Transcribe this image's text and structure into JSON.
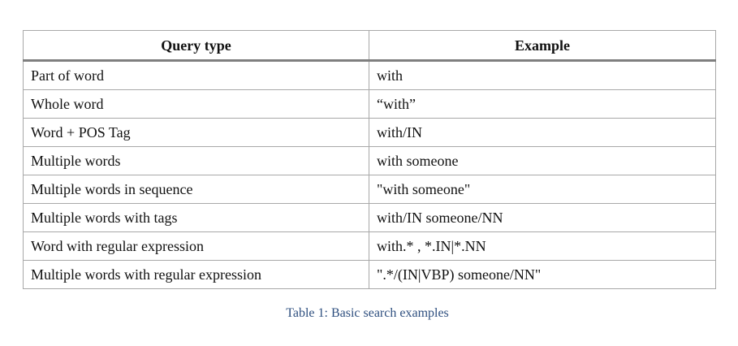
{
  "table": {
    "headers": [
      "Query type",
      "Example"
    ],
    "rows": [
      [
        "Part of word",
        "with"
      ],
      [
        "Whole word",
        "“with”"
      ],
      [
        "Word + POS Tag",
        "with/IN"
      ],
      [
        "Multiple words",
        "with someone"
      ],
      [
        "Multiple words in sequence",
        "\"with someone\""
      ],
      [
        "Multiple words with tags",
        "with/IN someone/NN"
      ],
      [
        "Word with regular expression",
        "with.* , *.IN|*.NN"
      ],
      [
        "Multiple words with regular expression",
        "\".*/(IN|VBP) someone/NN\""
      ]
    ]
  },
  "caption": "Table 1: Basic search examples",
  "colors": {
    "caption": "#2e4f7f",
    "border": "#a8a8a8",
    "header_rule": "#7f7f7f"
  }
}
